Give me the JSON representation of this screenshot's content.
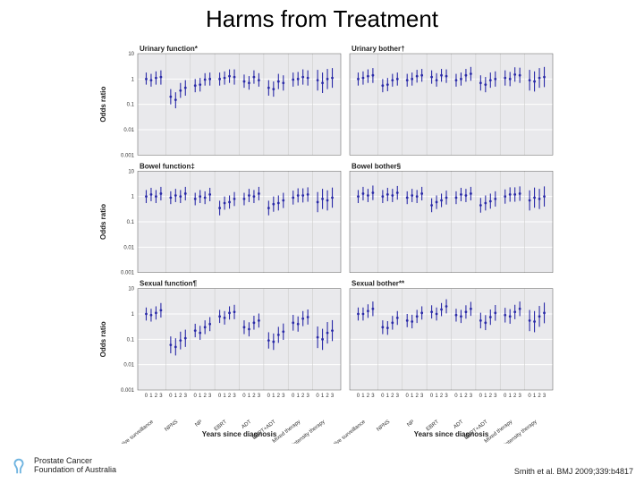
{
  "title": "Harms from Treatment",
  "citation": "Smith et al. BMJ 2009;339:b4817",
  "org_line1": "Prostate Cancer",
  "org_line2": "Foundation of Australia",
  "figure": {
    "type": "forest-panel-grid",
    "rows": 3,
    "cols": 2,
    "background_color": "#ffffff",
    "plot_bg": "#e9e9ec",
    "grid_color": "#ffffff",
    "marker_color": "#2a2aa8",
    "error_color": "#2a2aa8",
    "axis_color": "#555555",
    "vline_color": "#cccccc",
    "yscale": "log",
    "ylim": [
      0.001,
      10
    ],
    "yticks": [
      0.001,
      0.01,
      0.1,
      1,
      10
    ],
    "ytick_labels": [
      "0.001",
      "0.01",
      "0.1",
      "1",
      "10"
    ],
    "y_axis_title": "Odds ratio",
    "x_axis_title": "Years since diagnosis",
    "x_years": [
      0,
      1,
      2,
      3
    ],
    "panels": [
      {
        "title": "Urinary function*"
      },
      {
        "title": "Urinary bother†"
      },
      {
        "title": "Bowel function‡"
      },
      {
        "title": "Bowel bother§"
      },
      {
        "title": "Sexual function¶"
      },
      {
        "title": "Sexual bother**"
      }
    ],
    "treatments": [
      "Active surveillance",
      "NPNS",
      "NP",
      "EBRT",
      "ADT",
      "EBRT+ADT",
      "Mixed therapy",
      "High-intensity therapy"
    ],
    "data": {
      "p0": {
        "y": [
          [
            1.0,
            0.9,
            1.1,
            1.2
          ],
          [
            0.2,
            0.15,
            0.35,
            0.45
          ],
          [
            0.55,
            0.6,
            0.95,
            1.0
          ],
          [
            1.0,
            1.1,
            1.3,
            1.2
          ],
          [
            0.8,
            0.7,
            1.2,
            0.9
          ],
          [
            0.45,
            0.4,
            0.8,
            0.7
          ],
          [
            0.95,
            1.0,
            1.2,
            1.1
          ],
          [
            0.9,
            0.7,
            1.0,
            1.1
          ]
        ],
        "lo": [
          [
            0.6,
            0.5,
            0.6,
            0.6
          ],
          [
            0.1,
            0.07,
            0.18,
            0.22
          ],
          [
            0.3,
            0.32,
            0.55,
            0.55
          ],
          [
            0.55,
            0.6,
            0.7,
            0.6
          ],
          [
            0.45,
            0.38,
            0.65,
            0.5
          ],
          [
            0.22,
            0.2,
            0.4,
            0.35
          ],
          [
            0.5,
            0.55,
            0.6,
            0.55
          ],
          [
            0.35,
            0.28,
            0.4,
            0.45
          ]
        ],
        "hi": [
          [
            1.8,
            1.6,
            2.0,
            2.2
          ],
          [
            0.4,
            0.3,
            0.7,
            0.9
          ],
          [
            1.0,
            1.1,
            1.7,
            1.8
          ],
          [
            1.8,
            2.0,
            2.4,
            2.4
          ],
          [
            1.5,
            1.3,
            2.2,
            1.7
          ],
          [
            0.9,
            0.8,
            1.6,
            1.4
          ],
          [
            1.8,
            1.9,
            2.4,
            2.2
          ],
          [
            2.3,
            1.8,
            2.5,
            2.7
          ]
        ]
      },
      "p1": {
        "y": [
          [
            1.0,
            1.1,
            1.3,
            1.4
          ],
          [
            0.55,
            0.6,
            0.9,
            1.0
          ],
          [
            0.9,
            1.0,
            1.3,
            1.4
          ],
          [
            1.2,
            0.9,
            1.4,
            1.3
          ],
          [
            0.9,
            1.0,
            1.4,
            1.6
          ],
          [
            0.7,
            0.6,
            0.9,
            1.0
          ],
          [
            1.1,
            1.0,
            1.5,
            1.4
          ],
          [
            0.9,
            0.8,
            1.1,
            1.2
          ]
        ],
        "lo": [
          [
            0.55,
            0.6,
            0.7,
            0.7
          ],
          [
            0.3,
            0.33,
            0.5,
            0.55
          ],
          [
            0.5,
            0.55,
            0.72,
            0.78
          ],
          [
            0.65,
            0.5,
            0.78,
            0.7
          ],
          [
            0.5,
            0.55,
            0.78,
            0.85
          ],
          [
            0.35,
            0.3,
            0.45,
            0.5
          ],
          [
            0.55,
            0.52,
            0.78,
            0.7
          ],
          [
            0.35,
            0.32,
            0.45,
            0.48
          ]
        ],
        "hi": [
          [
            1.8,
            2.0,
            2.4,
            2.7
          ],
          [
            1.0,
            1.1,
            1.6,
            1.8
          ],
          [
            1.6,
            1.8,
            2.3,
            2.5
          ],
          [
            2.2,
            1.7,
            2.5,
            2.4
          ],
          [
            1.6,
            1.8,
            2.5,
            3.0
          ],
          [
            1.4,
            1.2,
            1.8,
            2.0
          ],
          [
            2.2,
            1.9,
            2.9,
            2.8
          ],
          [
            2.3,
            2.0,
            2.7,
            3.0
          ]
        ]
      },
      "p2": {
        "y": [
          [
            1.0,
            1.2,
            1.0,
            1.3
          ],
          [
            0.9,
            1.1,
            1.0,
            1.3
          ],
          [
            0.8,
            1.0,
            0.9,
            1.2
          ],
          [
            0.35,
            0.55,
            0.6,
            0.8
          ],
          [
            0.8,
            1.1,
            1.0,
            1.3
          ],
          [
            0.35,
            0.5,
            0.55,
            0.7
          ],
          [
            0.9,
            1.1,
            1.1,
            1.2
          ],
          [
            0.6,
            0.8,
            0.7,
            0.9
          ]
        ],
        "lo": [
          [
            0.55,
            0.65,
            0.55,
            0.7
          ],
          [
            0.5,
            0.6,
            0.55,
            0.7
          ],
          [
            0.45,
            0.55,
            0.5,
            0.65
          ],
          [
            0.18,
            0.3,
            0.33,
            0.42
          ],
          [
            0.45,
            0.6,
            0.55,
            0.7
          ],
          [
            0.18,
            0.25,
            0.28,
            0.35
          ],
          [
            0.48,
            0.58,
            0.58,
            0.62
          ],
          [
            0.24,
            0.32,
            0.28,
            0.36
          ]
        ],
        "hi": [
          [
            1.8,
            2.2,
            1.8,
            2.4
          ],
          [
            1.6,
            2.0,
            1.8,
            2.4
          ],
          [
            1.4,
            1.8,
            1.6,
            2.2
          ],
          [
            0.68,
            1.0,
            1.1,
            1.5
          ],
          [
            1.4,
            2.0,
            1.8,
            2.4
          ],
          [
            0.68,
            1.0,
            1.1,
            1.4
          ],
          [
            1.7,
            2.1,
            2.1,
            2.3
          ],
          [
            1.5,
            2.0,
            1.75,
            2.25
          ]
        ]
      },
      "p3": {
        "y": [
          [
            1.0,
            1.3,
            1.1,
            1.4
          ],
          [
            1.0,
            1.2,
            1.1,
            1.4
          ],
          [
            0.9,
            1.1,
            1.0,
            1.3
          ],
          [
            0.45,
            0.6,
            0.7,
            0.9
          ],
          [
            0.9,
            1.2,
            1.1,
            1.3
          ],
          [
            0.45,
            0.55,
            0.65,
            0.8
          ],
          [
            1.0,
            1.2,
            1.2,
            1.3
          ],
          [
            0.7,
            0.9,
            0.8,
            1.0
          ]
        ],
        "lo": [
          [
            0.55,
            0.7,
            0.6,
            0.72
          ],
          [
            0.55,
            0.65,
            0.6,
            0.75
          ],
          [
            0.5,
            0.6,
            0.55,
            0.7
          ],
          [
            0.24,
            0.32,
            0.38,
            0.48
          ],
          [
            0.5,
            0.65,
            0.6,
            0.7
          ],
          [
            0.23,
            0.28,
            0.33,
            0.4
          ],
          [
            0.52,
            0.62,
            0.62,
            0.67
          ],
          [
            0.28,
            0.36,
            0.32,
            0.4
          ]
        ],
        "hi": [
          [
            1.8,
            2.4,
            2.0,
            2.7
          ],
          [
            1.8,
            2.2,
            2.0,
            2.6
          ],
          [
            1.6,
            2.0,
            1.8,
            2.4
          ],
          [
            0.85,
            1.1,
            1.3,
            1.7
          ],
          [
            1.6,
            2.2,
            2.0,
            2.4
          ],
          [
            0.88,
            1.1,
            1.3,
            1.6
          ],
          [
            1.9,
            2.3,
            2.3,
            2.5
          ],
          [
            1.75,
            2.25,
            2.0,
            2.5
          ]
        ]
      },
      "p4": {
        "y": [
          [
            1.0,
            0.9,
            1.1,
            1.4
          ],
          [
            0.06,
            0.05,
            0.09,
            0.11
          ],
          [
            0.22,
            0.18,
            0.3,
            0.4
          ],
          [
            0.8,
            0.7,
            1.1,
            1.2
          ],
          [
            0.3,
            0.25,
            0.45,
            0.55
          ],
          [
            0.09,
            0.08,
            0.15,
            0.2
          ],
          [
            0.45,
            0.4,
            0.65,
            0.75
          ],
          [
            0.12,
            0.1,
            0.18,
            0.22
          ]
        ],
        "lo": [
          [
            0.55,
            0.5,
            0.6,
            0.72
          ],
          [
            0.028,
            0.023,
            0.04,
            0.05
          ],
          [
            0.12,
            0.095,
            0.16,
            0.21
          ],
          [
            0.44,
            0.38,
            0.6,
            0.62
          ],
          [
            0.16,
            0.13,
            0.24,
            0.29
          ],
          [
            0.043,
            0.038,
            0.072,
            0.095
          ],
          [
            0.22,
            0.2,
            0.33,
            0.38
          ],
          [
            0.045,
            0.038,
            0.068,
            0.085
          ]
        ],
        "hi": [
          [
            1.8,
            1.6,
            2.0,
            2.7
          ],
          [
            0.13,
            0.11,
            0.2,
            0.24
          ],
          [
            0.41,
            0.34,
            0.56,
            0.75
          ],
          [
            1.45,
            1.3,
            2.0,
            2.3
          ],
          [
            0.56,
            0.47,
            0.85,
            1.04
          ],
          [
            0.19,
            0.17,
            0.31,
            0.42
          ],
          [
            0.92,
            0.8,
            1.3,
            1.5
          ],
          [
            0.32,
            0.26,
            0.48,
            0.57
          ]
        ]
      },
      "p5": {
        "y": [
          [
            1.0,
            1.0,
            1.3,
            1.6
          ],
          [
            0.3,
            0.28,
            0.45,
            0.7
          ],
          [
            0.55,
            0.5,
            0.8,
            1.1
          ],
          [
            1.2,
            1.0,
            1.5,
            2.0
          ],
          [
            0.9,
            0.8,
            1.2,
            1.6
          ],
          [
            0.55,
            0.45,
            0.75,
            1.1
          ],
          [
            0.9,
            0.8,
            1.2,
            1.6
          ],
          [
            0.55,
            0.5,
            0.8,
            1.1
          ]
        ],
        "lo": [
          [
            0.55,
            0.55,
            0.7,
            0.82
          ],
          [
            0.16,
            0.15,
            0.24,
            0.37
          ],
          [
            0.3,
            0.27,
            0.44,
            0.6
          ],
          [
            0.66,
            0.55,
            0.82,
            1.05
          ],
          [
            0.5,
            0.44,
            0.65,
            0.84
          ],
          [
            0.27,
            0.23,
            0.37,
            0.54
          ],
          [
            0.46,
            0.41,
            0.62,
            0.82
          ],
          [
            0.21,
            0.19,
            0.31,
            0.43
          ]
        ],
        "hi": [
          [
            1.8,
            1.8,
            2.4,
            3.1
          ],
          [
            0.56,
            0.52,
            0.84,
            1.3
          ],
          [
            1.0,
            0.93,
            1.45,
            2.0
          ],
          [
            2.2,
            1.8,
            2.7,
            3.8
          ],
          [
            1.6,
            1.45,
            2.2,
            3.0
          ],
          [
            1.12,
            0.9,
            1.5,
            2.25
          ],
          [
            1.75,
            1.55,
            2.3,
            3.1
          ],
          [
            1.44,
            1.3,
            2.07,
            2.8
          ]
        ]
      }
    }
  }
}
